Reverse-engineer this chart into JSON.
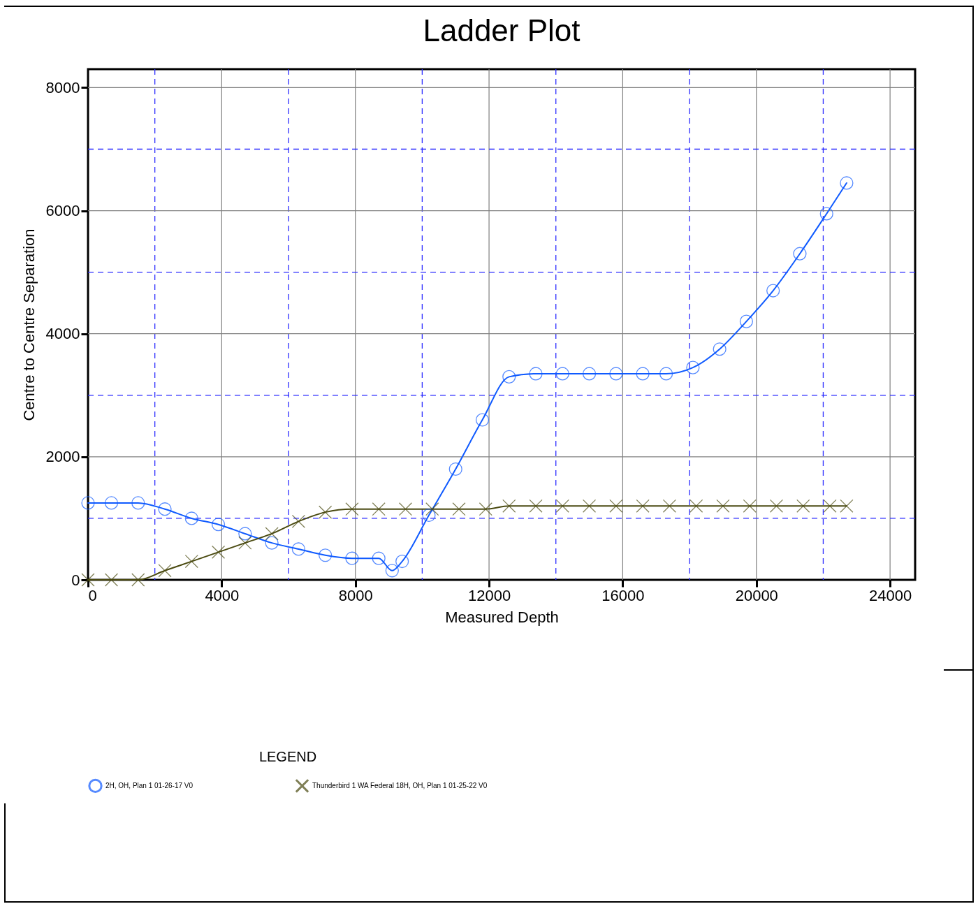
{
  "chart_data": {
    "type": "line",
    "title": "Ladder Plot",
    "xlabel": "Measured Depth",
    "ylabel": "Centre to Centre Separation",
    "legend_title": "LEGEND",
    "legend": "bottom",
    "grid": true,
    "line_style": "solid",
    "xlim": [
      0,
      24750
    ],
    "ylim": [
      0,
      8300
    ],
    "xticks": [
      0,
      {
        "value": 2000,
        "label": null
      },
      4000,
      {
        "value": 6000,
        "label": null
      },
      8000,
      {
        "value": 10000,
        "label": null
      },
      12000,
      {
        "value": 14000,
        "label": null
      },
      16000,
      {
        "value": 18000,
        "label": null
      },
      20000,
      {
        "value": 22000,
        "label": null
      },
      24000
    ],
    "yticks": [
      0,
      {
        "value": 1000,
        "label": null
      },
      2000,
      {
        "value": 3000,
        "label": null
      },
      4000,
      {
        "value": 5000,
        "label": null
      },
      6000,
      {
        "value": 7000,
        "label": null
      },
      8000
    ],
    "series": [
      {
        "name": "2H, OH, Plan 1 01-26-17 V0",
        "color": "#0f5aff",
        "marker": "circle",
        "x": [
          0,
          700,
          1500,
          2300,
          3100,
          3900,
          4700,
          5500,
          6300,
          7100,
          7900,
          8700,
          9100,
          9400,
          10200,
          11000,
          11800,
          12600,
          13400,
          14200,
          15000,
          15800,
          16600,
          17300,
          18100,
          18900,
          19700,
          20500,
          21300,
          22100,
          22700
        ],
        "values": [
          1250,
          1250,
          1250,
          1150,
          1000,
          900,
          750,
          600,
          500,
          400,
          350,
          350,
          150,
          300,
          1050,
          1800,
          2600,
          3300,
          3350,
          3350,
          3350,
          3350,
          3350,
          3350,
          3450,
          3750,
          4200,
          4700,
          5300,
          5950,
          6450
        ]
      },
      {
        "name": "Thunderbird 1 WA Federal 18H, OH, Plan 1 01-25-22 V0",
        "color": "#4a4a10",
        "marker": "cross",
        "x": [
          0,
          700,
          1500,
          2300,
          3100,
          3900,
          4700,
          5500,
          6300,
          7100,
          7900,
          8700,
          9500,
          10300,
          11100,
          11900,
          12600,
          13400,
          14200,
          15000,
          15800,
          16600,
          17400,
          18200,
          19000,
          19800,
          20600,
          21400,
          22200,
          22700
        ],
        "values": [
          0,
          0,
          0,
          150,
          300,
          450,
          600,
          750,
          950,
          1100,
          1150,
          1150,
          1150,
          1150,
          1150,
          1150,
          1200,
          1200,
          1200,
          1200,
          1200,
          1200,
          1200,
          1200,
          1200,
          1200,
          1200,
          1200,
          1200,
          1200
        ]
      }
    ]
  }
}
